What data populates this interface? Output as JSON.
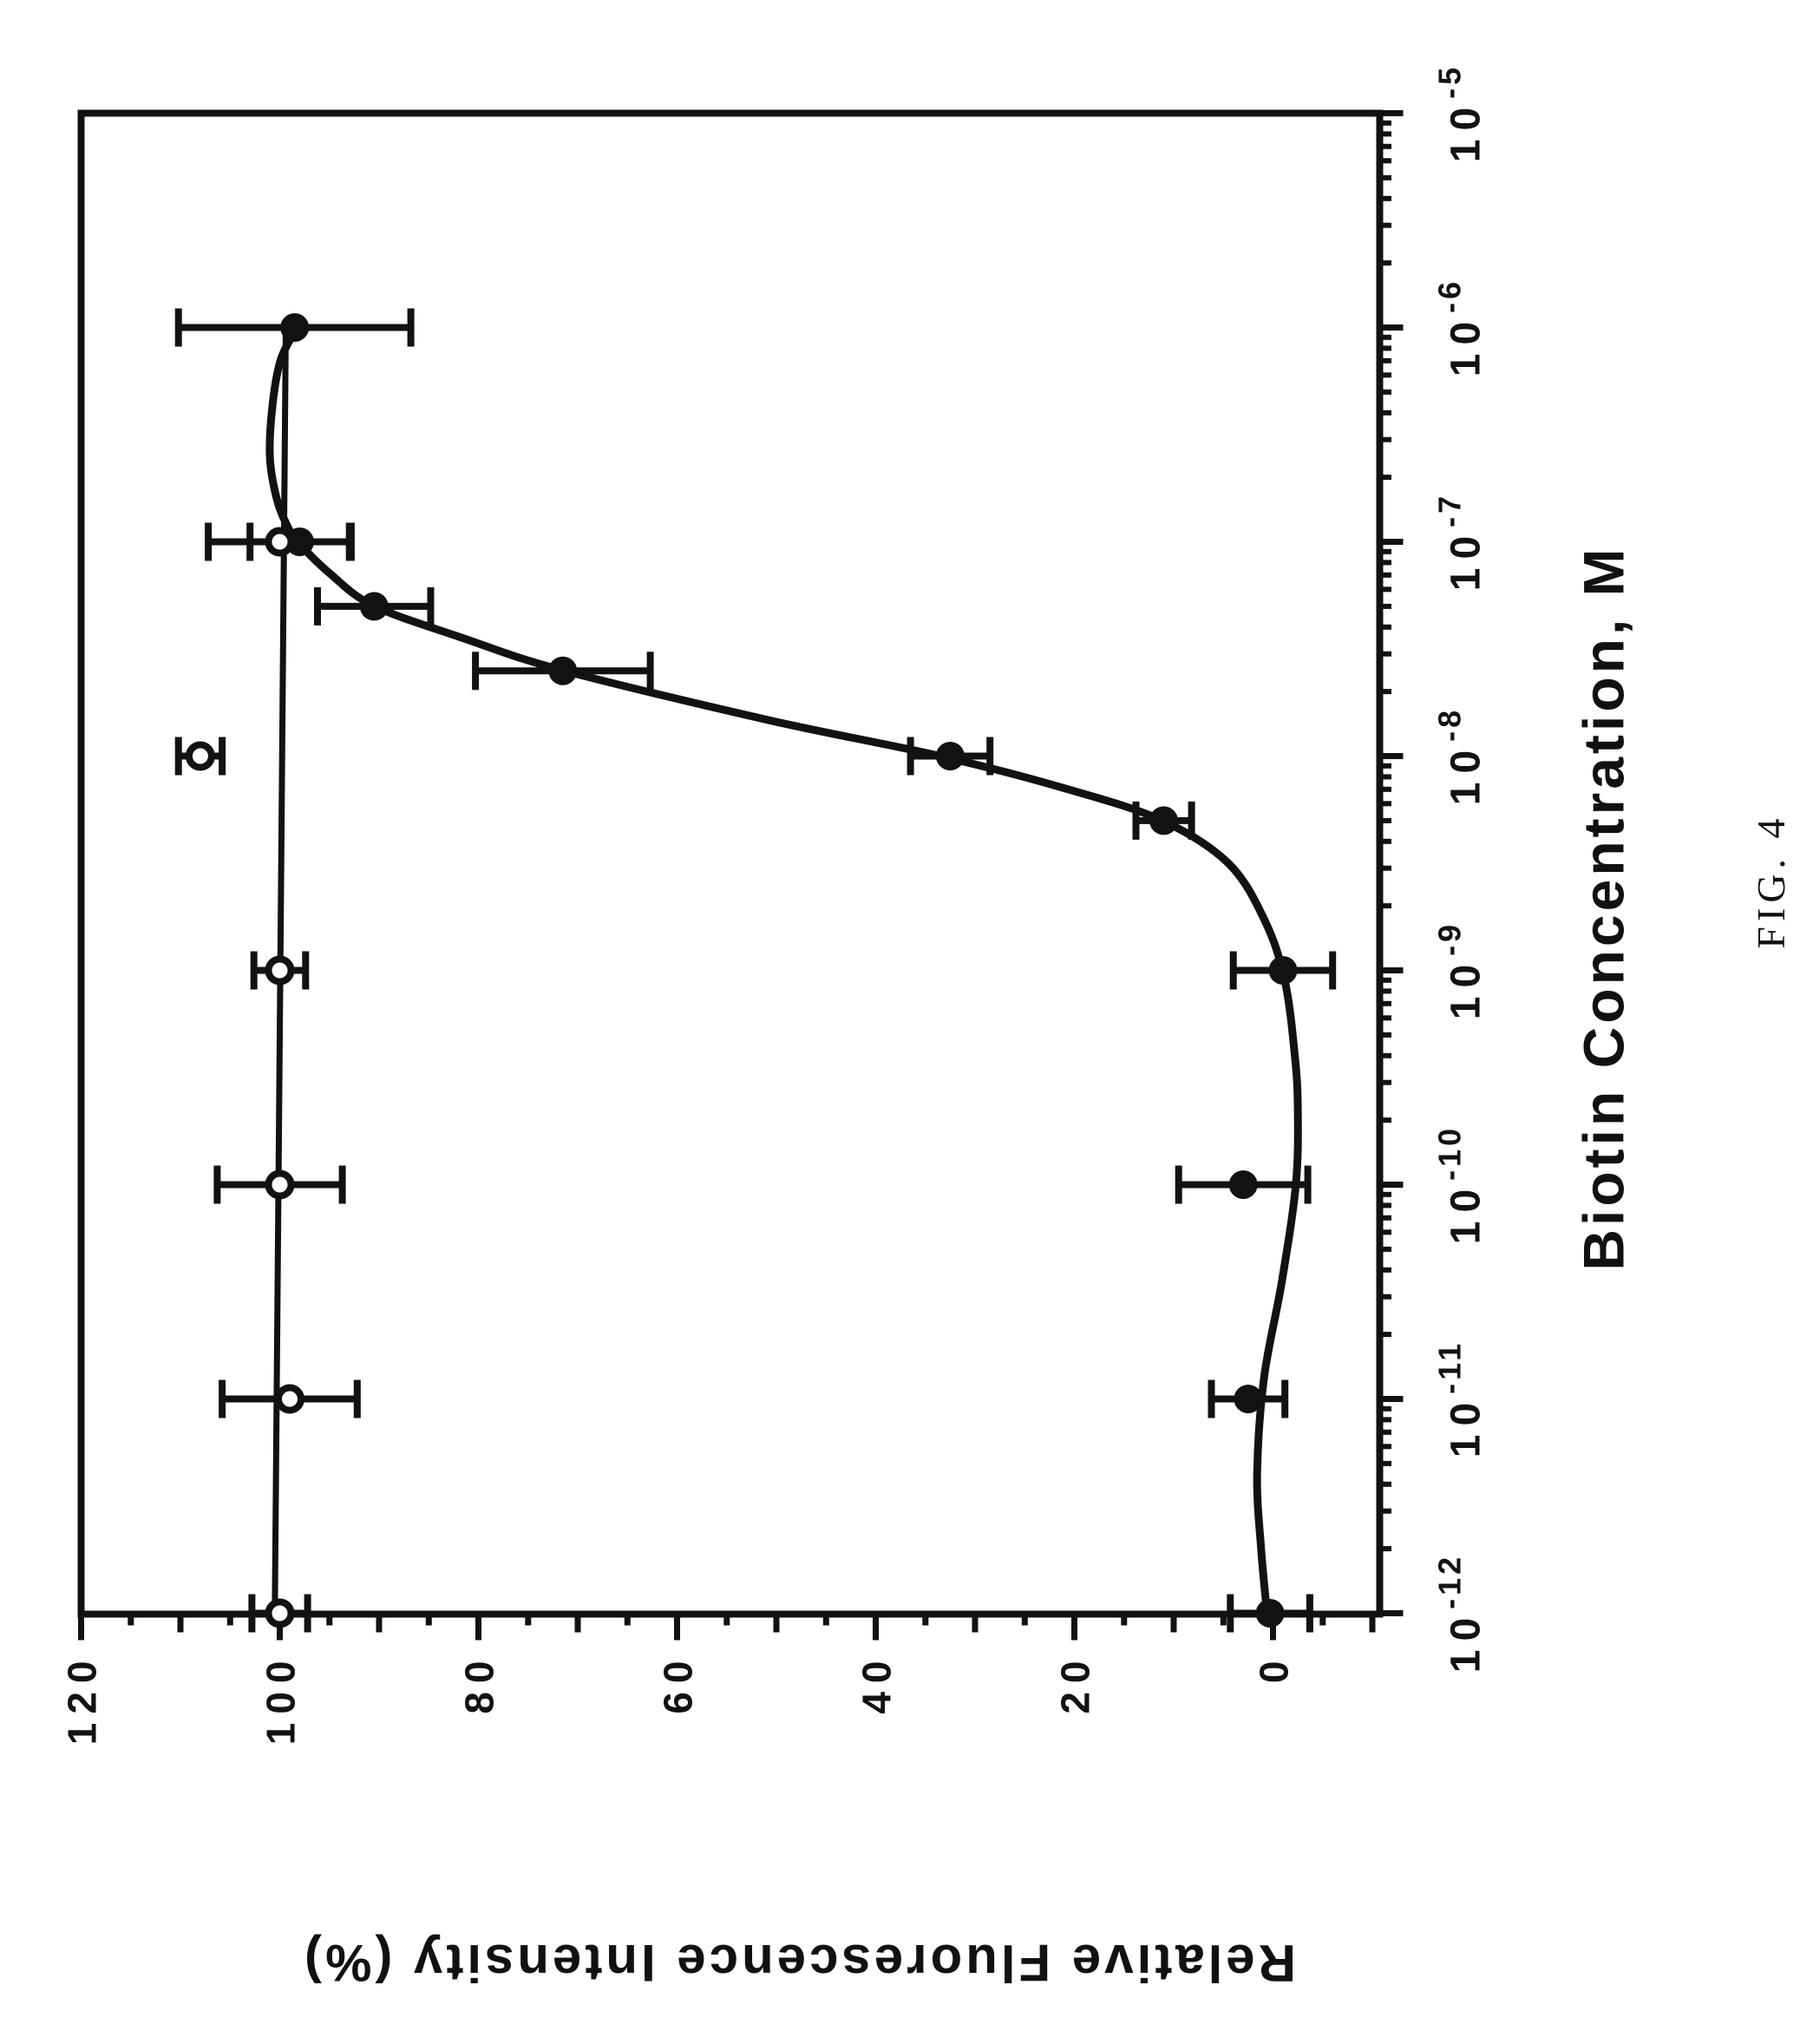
{
  "figure": {
    "fig_label": "FIG. 4",
    "ink_color": "#121212",
    "paper_color": "#ffffff"
  },
  "chart_data": {
    "type": "scatter",
    "title": "",
    "xlabel": "Biotin Concentration, M",
    "ylabel": "Relative Fluorescence Intensity (%)",
    "x_scale": "log",
    "x_range_exponents": [
      -12,
      -5
    ],
    "x_tick_exponents": [
      -5,
      -6,
      -7,
      -8,
      -9,
      -10,
      -11,
      -12
    ],
    "x_tick_labels": [
      "10-5",
      "10-6",
      "10-7",
      "10-8",
      "10-9",
      "10-10",
      "10-11",
      "10-12"
    ],
    "y_range": [
      -10,
      120
    ],
    "y_tick_labels": [
      120,
      100,
      80,
      60,
      40,
      20,
      0
    ],
    "y_minor_tick_step": 5,
    "grid": false,
    "legend": "none",
    "series": [
      {
        "name": "control-open-circles",
        "marker": "open-circle",
        "points": [
          {
            "conc": 1e-07,
            "value": 100,
            "err": 7.2
          },
          {
            "conc": 1e-08,
            "value": 108,
            "err": 2.2
          },
          {
            "conc": 1e-09,
            "value": 100,
            "err": 2.6
          },
          {
            "conc": 1e-10,
            "value": 100,
            "err": 6.3
          },
          {
            "conc": 1e-11,
            "value": 99,
            "err": 6.8
          },
          {
            "conc": 1e-12,
            "value": 100,
            "err": 2.8
          }
        ]
      },
      {
        "name": "biotin-titration-filled-circles",
        "marker": "filled-circle",
        "points": [
          {
            "conc": 1e-06,
            "value": 98.5,
            "err": 11.7
          },
          {
            "conc": 1e-07,
            "value": 98,
            "err": 5
          },
          {
            "conc": 5e-08,
            "value": 90.5,
            "err": 5.7
          },
          {
            "conc": 2.5e-08,
            "value": 71.5,
            "err": 8.8
          },
          {
            "conc": 1e-08,
            "value": 32.5,
            "err": 4
          },
          {
            "conc": 5e-09,
            "value": 11,
            "err": 2.8
          },
          {
            "conc": 1e-09,
            "value": -1,
            "err": 5
          },
          {
            "conc": 1e-10,
            "value": 3,
            "err": 6.5
          },
          {
            "conc": 1e-11,
            "value": 2.5,
            "err": 3.7
          },
          {
            "conc": 1e-12,
            "value": 0.3,
            "err": 4
          }
        ]
      }
    ],
    "fit_curve_exp_value": [
      [
        -6.02,
        98.5
      ],
      [
        -6.15,
        99.9
      ],
      [
        -6.35,
        100.7
      ],
      [
        -6.6,
        101.0
      ],
      [
        -6.8,
        100.3
      ],
      [
        -6.93,
        99.2
      ],
      [
        -7.0,
        98.2
      ],
      [
        -7.15,
        94.9
      ],
      [
        -7.3,
        90.5
      ],
      [
        -7.45,
        81.5
      ],
      [
        -7.6,
        71.5
      ],
      [
        -7.83,
        51.0
      ],
      [
        -8.0,
        33.5
      ],
      [
        -8.15,
        21.0
      ],
      [
        -8.3,
        11.2
      ],
      [
        -8.5,
        4.5
      ],
      [
        -8.77,
        0.8
      ],
      [
        -9.05,
        -1.2
      ],
      [
        -9.4,
        -2.2
      ],
      [
        -9.65,
        -2.5
      ],
      [
        -10.0,
        -2.3
      ],
      [
        -10.45,
        -0.9
      ],
      [
        -10.9,
        0.9
      ],
      [
        -11.35,
        1.6
      ],
      [
        -11.7,
        1.2
      ],
      [
        -12.0,
        0.6
      ]
    ],
    "reference_line_exp_value": [
      [
        -6.03,
        99.4
      ],
      [
        -12.0,
        100.5
      ]
    ]
  }
}
